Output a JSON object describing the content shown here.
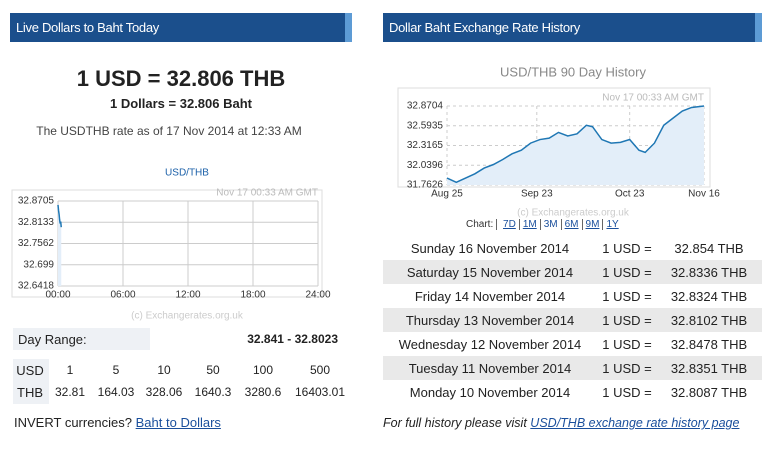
{
  "left": {
    "title": "Live Dollars to Baht Today",
    "headline": "1 USD = 32.806 THB",
    "subline": "1 Dollars = 32.806 Baht",
    "rate_note": "The USDTHB rate as of 17 Nov 2014 at 12:33 AM",
    "chart": {
      "type": "line",
      "title": "USD/THB",
      "timestamp": "Nov 17   00:33 AM GMT",
      "credit": "(c) Exchangerates.org.uk",
      "x": [
        0,
        0.05,
        0.1,
        0.15,
        0.2,
        0.25,
        0.3
      ],
      "values": [
        32.86,
        32.845,
        32.835,
        32.82,
        32.81,
        32.815,
        32.8
      ],
      "color": "#1f77b4",
      "xlim": [
        0,
        24
      ],
      "xticks": [
        {
          "value": 0,
          "label": "00:00"
        },
        {
          "value": 6,
          "label": "06:00"
        },
        {
          "value": 12,
          "label": "12:00"
        },
        {
          "value": 18,
          "label": "18:00"
        },
        {
          "value": 24,
          "label": "24:00"
        }
      ],
      "ylim": [
        32.6418,
        32.8705
      ],
      "yticks": [
        32.6418,
        32.699,
        32.7562,
        32.8133,
        32.8705
      ],
      "grid": true
    },
    "day_range": {
      "label": "Day Range:",
      "value": "32.841 - 32.8023"
    },
    "conversion": [
      [
        "USD",
        "1",
        "5",
        "10",
        "50",
        "100",
        "500"
      ],
      [
        "THB",
        "32.81",
        "164.03",
        "328.06",
        "1640.3",
        "3280.6",
        "16403.01"
      ]
    ],
    "invert": {
      "prefix": "INVERT currencies?",
      "link": "Baht to Dollars"
    }
  },
  "right": {
    "title": "Dollar Baht Exchange Rate History",
    "chart": {
      "type": "line",
      "title": "USD/THB  90 Day History",
      "timestamp": "Nov 17   00:33 AM GMT",
      "credit": "(c) Exchangerates.org.uk",
      "x": [
        0,
        3,
        6,
        9,
        12,
        15,
        18,
        21,
        24,
        27,
        30,
        33,
        36,
        39,
        42,
        45,
        47,
        50,
        53,
        56,
        59,
        62,
        64,
        67,
        70,
        73,
        76,
        79,
        83
      ],
      "values": [
        31.86,
        31.8,
        31.86,
        31.92,
        32.0,
        32.05,
        32.12,
        32.2,
        32.25,
        32.35,
        32.4,
        32.42,
        32.5,
        32.45,
        32.48,
        32.6,
        32.58,
        32.4,
        32.35,
        32.36,
        32.4,
        32.25,
        32.22,
        32.35,
        32.6,
        32.7,
        32.8,
        32.85,
        32.87
      ],
      "color": "#1f77b4",
      "xlim": [
        0,
        83
      ],
      "xticks": [
        {
          "value": 0,
          "label": "Aug 25"
        },
        {
          "value": 29,
          "label": "Sep 23"
        },
        {
          "value": 59,
          "label": "Oct 23"
        },
        {
          "value": 83,
          "label": "Nov 16"
        }
      ],
      "ylim": [
        31.7626,
        32.8704
      ],
      "yticks": [
        31.7626,
        32.0396,
        32.3165,
        32.5935,
        32.8704
      ],
      "grid": true
    },
    "chart_links_label": "Chart:",
    "chart_links": [
      "7D",
      "1M",
      "3M",
      "6M",
      "9M",
      "1Y"
    ],
    "history": [
      [
        "Sunday 16 November 2014",
        "1 USD =",
        "32.854 THB"
      ],
      [
        "Saturday 15 November 2014",
        "1 USD =",
        "32.8336 THB"
      ],
      [
        "Friday 14 November 2014",
        "1 USD =",
        "32.8324 THB"
      ],
      [
        "Thursday 13 November 2014",
        "1 USD =",
        "32.8102 THB"
      ],
      [
        "Wednesday 12 November 2014",
        "1 USD =",
        "32.8478 THB"
      ],
      [
        "Tuesday 11 November 2014",
        "1 USD =",
        "32.8351 THB"
      ],
      [
        "Monday 10 November 2014",
        "1 USD =",
        "32.8087 THB"
      ]
    ],
    "footer": {
      "prefix": "For full history please visit",
      "link": "USD/THB exchange rate history page"
    }
  }
}
